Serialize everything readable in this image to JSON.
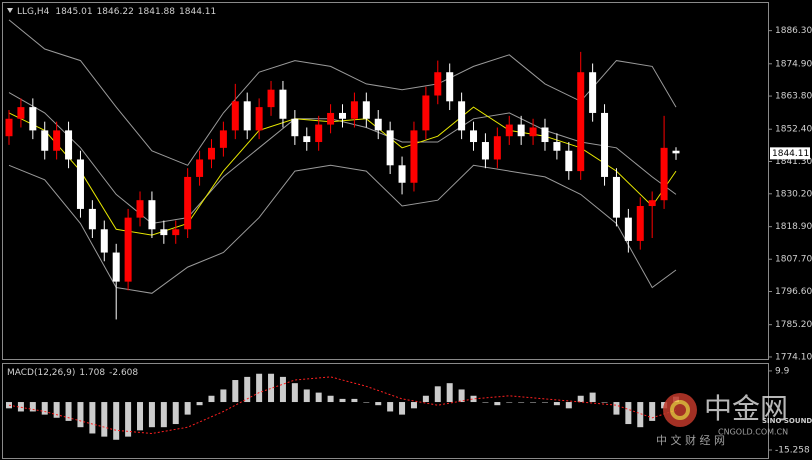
{
  "chart_data": {
    "type": "candlestick",
    "header": {
      "symbol": "LLG,H4"
    },
    "up_color": "#ff0000",
    "down_color": "#ffffff",
    "open": [
      1850,
      1856,
      1860,
      1852,
      1845,
      1852,
      1842,
      1825,
      1818,
      1810,
      1800,
      1822,
      1828,
      1818,
      1816,
      1818,
      1836,
      1842,
      1846,
      1852,
      1862,
      1852,
      1860,
      1866,
      1856,
      1850,
      1848,
      1854,
      1858,
      1856,
      1862,
      1856,
      1852,
      1840,
      1834,
      1852,
      1864,
      1872,
      1862,
      1852,
      1848,
      1842,
      1850,
      1854,
      1850,
      1853,
      1848,
      1845,
      1838,
      1872,
      1858,
      1836,
      1822,
      1814,
      1826,
      1828,
      1845.01
    ],
    "high": [
      1859,
      1863,
      1863,
      1855,
      1855,
      1855,
      1845,
      1828,
      1821,
      1813,
      1825,
      1831,
      1831,
      1821,
      1821,
      1839,
      1845,
      1849,
      1855,
      1868,
      1865,
      1863,
      1869,
      1869,
      1859,
      1853,
      1857,
      1861,
      1861,
      1865,
      1865,
      1859,
      1855,
      1843,
      1855,
      1867,
      1876,
      1875,
      1865,
      1855,
      1851,
      1853,
      1857,
      1857,
      1856,
      1856,
      1851,
      1848,
      1879,
      1875,
      1861,
      1839,
      1825,
      1829,
      1831,
      1857,
      1846.22
    ],
    "low": [
      1847,
      1853,
      1849,
      1842,
      1842,
      1839,
      1822,
      1815,
      1807,
      1787,
      1797,
      1819,
      1815,
      1813,
      1813,
      1815,
      1833,
      1839,
      1843,
      1849,
      1849,
      1849,
      1857,
      1853,
      1847,
      1845,
      1845,
      1851,
      1853,
      1853,
      1853,
      1849,
      1837,
      1830,
      1831,
      1849,
      1861,
      1859,
      1849,
      1845,
      1839,
      1839,
      1847,
      1847,
      1847,
      1845,
      1842,
      1835,
      1835,
      1855,
      1833,
      1819,
      1810,
      1811,
      1815,
      1825,
      1841.88
    ],
    "close": [
      1856,
      1860,
      1852,
      1845,
      1852,
      1842,
      1825,
      1818,
      1810,
      1800,
      1822,
      1828,
      1818,
      1816,
      1818,
      1836,
      1842,
      1846,
      1852,
      1862,
      1852,
      1860,
      1866,
      1856,
      1850,
      1848,
      1854,
      1858,
      1856,
      1862,
      1856,
      1852,
      1840,
      1834,
      1852,
      1864,
      1872,
      1862,
      1852,
      1848,
      1842,
      1850,
      1854,
      1850,
      1853,
      1848,
      1845,
      1838,
      1872,
      1858,
      1836,
      1822,
      1814,
      1826,
      1828,
      1846,
      1844.11
    ],
    "ylim": [
      1773.4,
      1895.8
    ],
    "yticks": [
      {
        "value": 1886.3,
        "label": "1886.30"
      },
      {
        "value": 1874.9,
        "label": "1874.90"
      },
      {
        "value": 1863.8,
        "label": "1863.80"
      },
      {
        "value": 1852.4,
        "label": "1852.40"
      },
      {
        "value": 1841.3,
        "label": "1841.30"
      },
      {
        "value": 1830.2,
        "label": "1830.20"
      },
      {
        "value": 1818.9,
        "label": "1818.90"
      },
      {
        "value": 1807.7,
        "label": "1807.70"
      },
      {
        "value": 1796.6,
        "label": "1796.60"
      },
      {
        "value": 1785.2,
        "label": "1785.20"
      },
      {
        "value": 1774.1,
        "label": "1774.10"
      }
    ],
    "indicators": [
      {
        "color": "#9a9a9a",
        "x": [
          0,
          3,
          6,
          9,
          12,
          15,
          18,
          21,
          24,
          27,
          30,
          33,
          36,
          39,
          42,
          45,
          48,
          51,
          54,
          56
        ],
        "values": [
          1890,
          1880,
          1876,
          1860,
          1845,
          1840,
          1858,
          1872,
          1876,
          1874,
          1868,
          1866,
          1868,
          1874,
          1878,
          1868,
          1862,
          1876,
          1874,
          1860
        ]
      },
      {
        "color": "#9a9a9a",
        "x": [
          0,
          3,
          6,
          9,
          12,
          15,
          18,
          21,
          24,
          27,
          30,
          33,
          36,
          39,
          42,
          45,
          48,
          51,
          54,
          56
        ],
        "values": [
          1865,
          1858,
          1846,
          1830,
          1820,
          1822,
          1836,
          1846,
          1856,
          1856,
          1853,
          1848,
          1848,
          1856,
          1858,
          1852,
          1848,
          1846,
          1836,
          1830
        ]
      },
      {
        "color": "#9a9a9a",
        "x": [
          0,
          3,
          6,
          9,
          12,
          15,
          18,
          21,
          24,
          27,
          30,
          33,
          36,
          39,
          42,
          45,
          48,
          51,
          54,
          56
        ],
        "values": [
          1840,
          1835,
          1820,
          1798,
          1796,
          1805,
          1810,
          1822,
          1838,
          1840,
          1838,
          1826,
          1828,
          1840,
          1838,
          1836,
          1830,
          1820,
          1798,
          1804
        ]
      },
      {
        "color": "#e8e800",
        "x": [
          0,
          3,
          6,
          9,
          12,
          15,
          18,
          21,
          24,
          27,
          30,
          33,
          36,
          39,
          42,
          45,
          48,
          51,
          54,
          56
        ],
        "values": [
          1858,
          1852,
          1838,
          1818,
          1816,
          1820,
          1838,
          1852,
          1856,
          1855,
          1856,
          1846,
          1850,
          1860,
          1852,
          1850,
          1846,
          1838,
          1826,
          1838
        ]
      }
    ],
    "macd": {
      "title": "MACD(12,26,9)",
      "hist_color": "#ffffff",
      "signal_color": "#ff2020",
      "values": [
        -2,
        -3,
        -3,
        -4,
        -5,
        -6,
        -8,
        -10,
        -11,
        -12,
        -11,
        -9,
        -8,
        -8,
        -7,
        -4,
        -1,
        2,
        4,
        7,
        8,
        9,
        9,
        8,
        6,
        4,
        3,
        2,
        1,
        1,
        0,
        -1,
        -3,
        -4,
        -2,
        2,
        5,
        6,
        4,
        2,
        0,
        -1,
        0,
        0,
        0,
        0,
        -1,
        -2,
        2,
        3,
        0,
        -4,
        -7,
        -8,
        -6,
        -2,
        1.708
      ],
      "signal_x": [
        0,
        3,
        6,
        9,
        12,
        15,
        18,
        21,
        24,
        27,
        30,
        33,
        36,
        39,
        42,
        45,
        48,
        51,
        54,
        56
      ],
      "signal": [
        -1,
        -3,
        -6,
        -9,
        -10,
        -8,
        -3,
        3,
        7,
        8,
        5,
        1,
        -1,
        1,
        2,
        1,
        0,
        -1,
        -5,
        -2.608
      ],
      "ylim": [
        -17.8,
        12.1
      ],
      "yticks": [
        9.9,
        -15.258
      ]
    }
  },
  "watermark": {
    "brand": "中金网",
    "site": "CNGOLD.COM.CN",
    "tagline": "中 文 财 经 网",
    "partner": "SINO SOUND"
  }
}
